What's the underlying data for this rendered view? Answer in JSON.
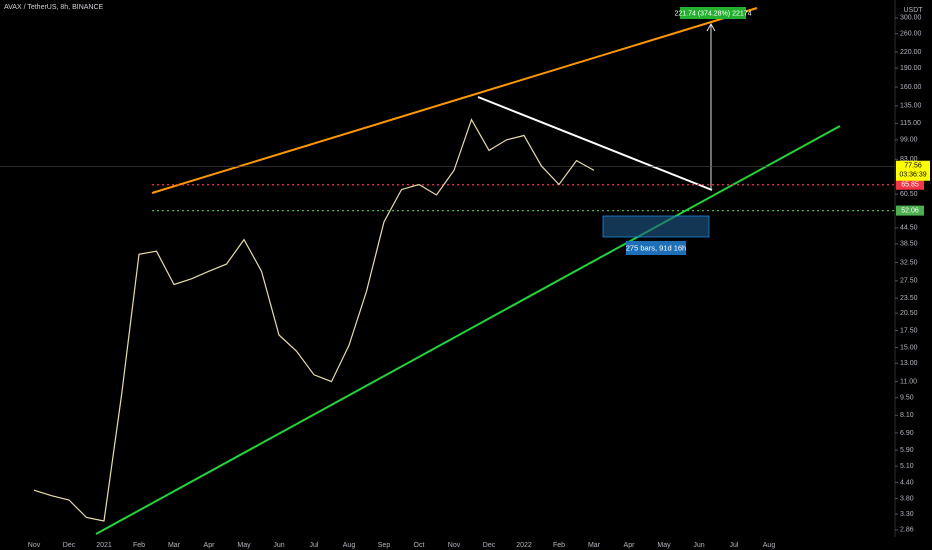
{
  "chart_data": {
    "type": "line",
    "title": "AVAX / TetherUS, 8h, BINANCE",
    "currency_label": "USDT",
    "log_scale": true,
    "categories": [
      "Nov",
      null,
      "Dec",
      null,
      "2021",
      null,
      "Feb",
      null,
      "Mar",
      null,
      "Apr",
      null,
      "May",
      null,
      "Jun",
      null,
      "Jul",
      null,
      "Aug",
      null,
      "Sep",
      null,
      "Oct",
      null,
      "Nov",
      null,
      "Dec",
      null,
      "2022",
      null,
      "Feb",
      null,
      "Mar",
      null,
      "Apr",
      null,
      "May",
      null,
      "Jun",
      null,
      "Jul",
      null,
      "Aug"
    ],
    "values": [
      4.1,
      3.9,
      3.75,
      3.2,
      3.1,
      9.7,
      35,
      36,
      26.6,
      28,
      30,
      32,
      40,
      30,
      16.8,
      14.5,
      11.7,
      11,
      15.3,
      25,
      47,
      63,
      66,
      60,
      75,
      119,
      90,
      99,
      103,
      78,
      66,
      82,
      75,
      null,
      null,
      null,
      null,
      null,
      null,
      null,
      null,
      null,
      null
    ],
    "color": "#e8dca8",
    "ylim": [
      2.68,
      353
    ],
    "yticks": [
      {
        "value": 300,
        "label": "300.00"
      },
      {
        "value": 260,
        "label": "260.00"
      },
      {
        "value": 220,
        "label": "220.00"
      },
      {
        "value": 190,
        "label": "190.00"
      },
      {
        "value": 160,
        "label": "160.00"
      },
      {
        "value": 135,
        "label": "135.00"
      },
      {
        "value": 115,
        "label": "115.00"
      },
      {
        "value": 99,
        "label": "99.00"
      },
      {
        "value": 83,
        "label": "83.00"
      },
      {
        "value": 60.5,
        "label": "60.50"
      },
      {
        "value": 44.5,
        "label": "44.50"
      },
      {
        "value": 38.5,
        "label": "38.50"
      },
      {
        "value": 32.5,
        "label": "32.50"
      },
      {
        "value": 27.5,
        "label": "27.50"
      },
      {
        "value": 23.5,
        "label": "23.50"
      },
      {
        "value": 20.5,
        "label": "20.50"
      },
      {
        "value": 17.5,
        "label": "17.50"
      },
      {
        "value": 15,
        "label": "15.00"
      },
      {
        "value": 13,
        "label": "13.00"
      },
      {
        "value": 11,
        "label": "11.00"
      },
      {
        "value": 9.5,
        "label": "9.50"
      },
      {
        "value": 8.1,
        "label": "8.10"
      },
      {
        "value": 6.9,
        "label": "6.90"
      },
      {
        "value": 5.9,
        "label": "5.90"
      },
      {
        "value": 5.1,
        "label": "5.10"
      },
      {
        "value": 4.4,
        "label": "4.40"
      },
      {
        "value": 3.8,
        "label": "3.80"
      },
      {
        "value": 3.3,
        "label": "3.30"
      },
      2.86
    ],
    "current_price": 77.56,
    "countdown": "03:36:39",
    "levels": [
      {
        "value": 65.85,
        "color": "#f23645"
      },
      {
        "value": 52.06,
        "color": "#4caf50"
      }
    ],
    "target_label": "221.74 (374.28%) 22174",
    "range_label": "275 bars, 91d 16h"
  }
}
